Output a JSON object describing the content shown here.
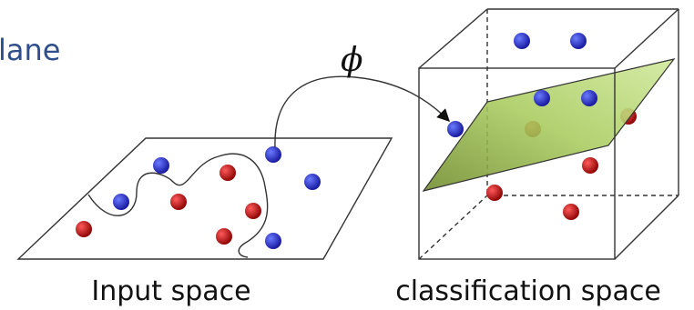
{
  "heading": "lane",
  "mapping_label": "ϕ",
  "left_panel": {
    "caption": "Input space"
  },
  "right_panel": {
    "caption": "classification space"
  }
}
